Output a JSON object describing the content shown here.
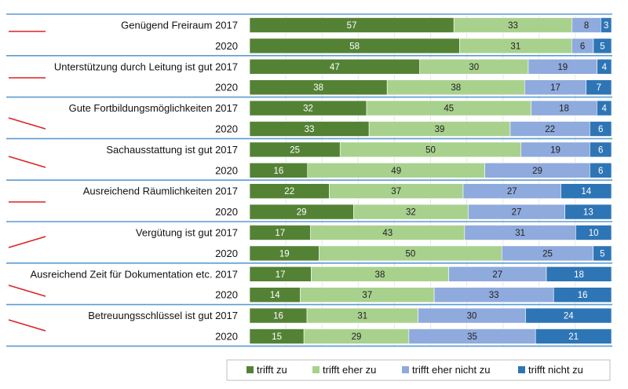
{
  "chart_data": {
    "type": "bar",
    "orientation": "horizontal",
    "stacked": "100%",
    "title": "",
    "xlabel": "",
    "ylabel": "",
    "grid": true,
    "legend_position": "bottom-right",
    "series": [
      {
        "name": "trifft zu",
        "color": "#548235"
      },
      {
        "name": "trifft eher zu",
        "color": "#a9d18e"
      },
      {
        "name": "trifft eher nicht zu",
        "color": "#8faadc"
      },
      {
        "name": "trifft nicht zu",
        "color": "#2e75b6"
      }
    ],
    "categories": [
      {
        "label": "Genügend Freiraum 2017",
        "values": [
          57,
          33,
          8,
          3
        ]
      },
      {
        "label": "2020",
        "values": [
          58,
          31,
          6,
          5
        ]
      },
      {
        "label": "Unterstützung durch Leitung ist gut 2017",
        "values": [
          47,
          30,
          19,
          4
        ]
      },
      {
        "label": "2020",
        "values": [
          38,
          38,
          17,
          7
        ]
      },
      {
        "label": "Gute Fortbildungsmöglichkeiten 2017",
        "values": [
          32,
          45,
          18,
          4
        ]
      },
      {
        "label": "2020",
        "values": [
          33,
          39,
          22,
          6
        ]
      },
      {
        "label": "Sachausstattung ist gut 2017",
        "values": [
          25,
          50,
          19,
          6
        ]
      },
      {
        "label": "2020",
        "values": [
          16,
          49,
          29,
          6
        ]
      },
      {
        "label": "Ausreichend Räumlichkeiten  2017",
        "values": [
          22,
          37,
          27,
          14
        ]
      },
      {
        "label": "2020",
        "values": [
          29,
          32,
          27,
          13
        ]
      },
      {
        "label": "Vergütung ist gut 2017",
        "values": [
          17,
          43,
          31,
          10
        ]
      },
      {
        "label": "2020",
        "values": [
          19,
          50,
          25,
          5
        ]
      },
      {
        "label": "Ausreichend Zeit für Dokumentation etc. 2017",
        "values": [
          17,
          38,
          27,
          18
        ]
      },
      {
        "label": "2020",
        "values": [
          14,
          37,
          33,
          16
        ]
      },
      {
        "label": "Betreuungsschlüssel ist gut 2017",
        "values": [
          16,
          31,
          30,
          24
        ]
      },
      {
        "label": "2020",
        "values": [
          15,
          29,
          35,
          21
        ]
      }
    ],
    "annotations": {
      "type": "hand-drawn red trend marks per group",
      "color": "#e02020",
      "trends": [
        "flat",
        "flat",
        "down",
        "down",
        "flat",
        "up",
        "down",
        "down"
      ]
    }
  }
}
